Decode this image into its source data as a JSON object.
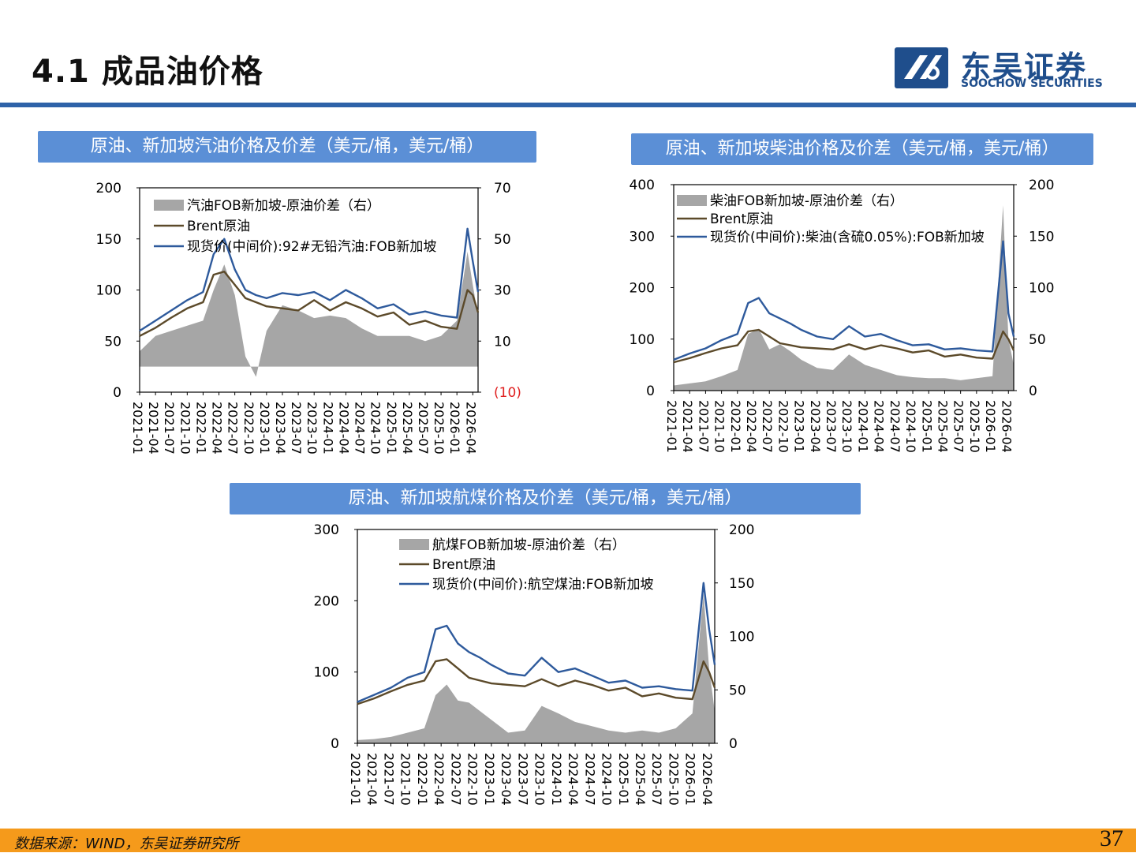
{
  "header": {
    "title": "4.1 成品油价格",
    "logo_cn": "东吴证券",
    "logo_en": "SOOCHOW SECURITIES",
    "accent_color": "#2e62a8"
  },
  "footer": {
    "source": "数据来源：WIND，东吴证券研究所",
    "page_number": "37",
    "bar_color": "#f59a1b"
  },
  "panels": [
    {
      "title": "原油、新加坡汽油价格及价差（美元/桶，美元/桶）"
    },
    {
      "title": "原油、新加坡柴油价格及价差（美元/桶，美元/桶）"
    },
    {
      "title": "原油、新加坡航煤价格及价差（美元/桶，美元/桶）"
    }
  ],
  "chart_data": [
    {
      "type": "line",
      "title": "原油、新加坡汽油价格及价差（美元/桶，美元/桶）",
      "x_ticks": [
        "2021-01",
        "2021-04",
        "2021-07",
        "2021-10",
        "2022-01",
        "2022-04",
        "2022-07",
        "2022-10",
        "2023-01",
        "2023-04",
        "2023-07",
        "2023-10",
        "2024-01",
        "2024-04",
        "2024-07",
        "2024-10",
        "2025-01",
        "2025-04",
        "2025-07",
        "2025-10",
        "2026-01",
        "2026-04"
      ],
      "y_left": {
        "ticks": [
          "0",
          "50",
          "100",
          "150",
          "200"
        ],
        "range": [
          0,
          200
        ]
      },
      "y_right": {
        "ticks": [
          "(10)",
          "10",
          "30",
          "50",
          "70"
        ],
        "range": [
          -10,
          70
        ],
        "negative_color": "#e02020"
      },
      "series": [
        {
          "name": "汽油FOB新加坡-原油价差（右）",
          "type": "area",
          "axis": "right",
          "color": "#a6a6a6",
          "x": [
            "2021-01",
            "2021-04",
            "2021-07",
            "2021-10",
            "2022-01",
            "2022-03",
            "2022-05",
            "2022-07",
            "2022-09",
            "2022-11",
            "2023-01",
            "2023-04",
            "2023-07",
            "2023-10",
            "2024-01",
            "2024-04",
            "2024-07",
            "2024-10",
            "2025-01",
            "2025-04",
            "2025-07",
            "2025-10",
            "2026-01",
            "2026-03",
            "2026-04",
            "2026-05"
          ],
          "values": [
            6,
            12,
            14,
            16,
            18,
            30,
            40,
            28,
            4,
            -4,
            14,
            24,
            22,
            19,
            20,
            19,
            15,
            12,
            12,
            12,
            10,
            12,
            18,
            45,
            32,
            20
          ]
        },
        {
          "name": "Brent原油",
          "type": "line",
          "axis": "left",
          "color": "#5c4a2a",
          "x": [
            "2021-01",
            "2021-04",
            "2021-07",
            "2021-10",
            "2022-01",
            "2022-03",
            "2022-05",
            "2022-07",
            "2022-09",
            "2022-11",
            "2023-01",
            "2023-04",
            "2023-07",
            "2023-10",
            "2024-01",
            "2024-04",
            "2024-07",
            "2024-10",
            "2025-01",
            "2025-04",
            "2025-07",
            "2025-10",
            "2026-01",
            "2026-03",
            "2026-04",
            "2026-05"
          ],
          "values": [
            55,
            63,
            73,
            82,
            88,
            115,
            118,
            105,
            92,
            88,
            84,
            82,
            80,
            90,
            80,
            88,
            82,
            74,
            78,
            66,
            70,
            64,
            62,
            100,
            95,
            78
          ]
        },
        {
          "name": "现货价(中间价):92#无铅汽油:FOB新加坡",
          "type": "line",
          "axis": "left",
          "color": "#2e5a9c",
          "x": [
            "2021-01",
            "2021-04",
            "2021-07",
            "2021-10",
            "2022-01",
            "2022-03",
            "2022-05",
            "2022-07",
            "2022-09",
            "2022-11",
            "2023-01",
            "2023-04",
            "2023-07",
            "2023-10",
            "2024-01",
            "2024-04",
            "2024-07",
            "2024-10",
            "2025-01",
            "2025-04",
            "2025-07",
            "2025-10",
            "2026-01",
            "2026-03",
            "2026-04",
            "2026-05"
          ],
          "values": [
            60,
            70,
            80,
            90,
            98,
            135,
            150,
            120,
            100,
            95,
            92,
            97,
            95,
            98,
            90,
            100,
            92,
            82,
            86,
            76,
            79,
            75,
            73,
            160,
            128,
            98
          ]
        }
      ]
    },
    {
      "type": "line",
      "title": "原油、新加坡柴油价格及价差（美元/桶，美元/桶）",
      "x_ticks": [
        "2021-01",
        "2021-04",
        "2021-07",
        "2021-10",
        "2022-01",
        "2022-04",
        "2022-07",
        "2022-10",
        "2023-01",
        "2023-04",
        "2023-07",
        "2023-10",
        "2024-01",
        "2024-04",
        "2024-07",
        "2024-10",
        "2025-01",
        "2025-04",
        "2025-07",
        "2025-10",
        "2026-01",
        "2026-04"
      ],
      "y_left": {
        "ticks": [
          "0",
          "100",
          "200",
          "300",
          "400"
        ],
        "range": [
          0,
          400
        ]
      },
      "y_right": {
        "ticks": [
          "0",
          "50",
          "100",
          "150",
          "200"
        ],
        "range": [
          0,
          200
        ]
      },
      "series": [
        {
          "name": "柴油FOB新加坡-原油价差（右）",
          "type": "area",
          "axis": "right",
          "color": "#a6a6a6",
          "x": [
            "2021-01",
            "2021-04",
            "2021-07",
            "2021-10",
            "2022-01",
            "2022-03",
            "2022-05",
            "2022-07",
            "2022-09",
            "2022-11",
            "2023-01",
            "2023-04",
            "2023-07",
            "2023-10",
            "2024-01",
            "2024-04",
            "2024-07",
            "2024-10",
            "2025-01",
            "2025-04",
            "2025-07",
            "2025-10",
            "2026-01",
            "2026-03",
            "2026-04",
            "2026-05"
          ],
          "values": [
            5,
            7,
            9,
            14,
            20,
            55,
            60,
            40,
            45,
            38,
            30,
            22,
            20,
            35,
            25,
            20,
            15,
            13,
            12,
            12,
            10,
            12,
            14,
            180,
            50,
            25
          ]
        },
        {
          "name": "Brent原油",
          "type": "line",
          "axis": "left",
          "color": "#5c4a2a",
          "x": [
            "2021-01",
            "2021-04",
            "2021-07",
            "2021-10",
            "2022-01",
            "2022-03",
            "2022-05",
            "2022-07",
            "2022-09",
            "2022-11",
            "2023-01",
            "2023-04",
            "2023-07",
            "2023-10",
            "2024-01",
            "2024-04",
            "2024-07",
            "2024-10",
            "2025-01",
            "2025-04",
            "2025-07",
            "2025-10",
            "2026-01",
            "2026-03",
            "2026-04",
            "2026-05"
          ],
          "values": [
            55,
            63,
            73,
            82,
            88,
            115,
            118,
            105,
            92,
            88,
            84,
            82,
            80,
            90,
            80,
            88,
            82,
            74,
            78,
            66,
            70,
            64,
            62,
            115,
            100,
            78
          ]
        },
        {
          "name": "现货价(中间价):柴油(含硫0.05%):FOB新加坡",
          "type": "line",
          "axis": "left",
          "color": "#2e5a9c",
          "x": [
            "2021-01",
            "2021-04",
            "2021-07",
            "2021-10",
            "2022-01",
            "2022-03",
            "2022-05",
            "2022-07",
            "2022-09",
            "2022-11",
            "2023-01",
            "2023-04",
            "2023-07",
            "2023-10",
            "2024-01",
            "2024-04",
            "2024-07",
            "2024-10",
            "2025-01",
            "2025-04",
            "2025-07",
            "2025-10",
            "2026-01",
            "2026-03",
            "2026-04",
            "2026-05"
          ],
          "values": [
            60,
            72,
            82,
            98,
            110,
            170,
            180,
            150,
            140,
            130,
            118,
            105,
            100,
            125,
            105,
            110,
            98,
            88,
            90,
            80,
            82,
            78,
            76,
            290,
            150,
            105
          ]
        }
      ]
    },
    {
      "type": "line",
      "title": "原油、新加坡航煤价格及价差（美元/桶，美元/桶）",
      "x_ticks": [
        "2021-01",
        "2021-04",
        "2021-07",
        "2021-10",
        "2022-01",
        "2022-04",
        "2022-07",
        "2022-10",
        "2023-01",
        "2023-04",
        "2023-07",
        "2023-10",
        "2024-01",
        "2024-04",
        "2024-07",
        "2024-10",
        "2025-01",
        "2025-04",
        "2025-07",
        "2025-10",
        "2026-01",
        "2026-04"
      ],
      "y_left": {
        "ticks": [
          "0",
          "100",
          "200",
          "300"
        ],
        "range": [
          0,
          300
        ]
      },
      "y_right": {
        "ticks": [
          "0",
          "50",
          "100",
          "150",
          "200"
        ],
        "range": [
          0,
          200
        ]
      },
      "series": [
        {
          "name": "航煤FOB新加坡-原油价差（右）",
          "type": "area",
          "axis": "right",
          "color": "#a6a6a6",
          "x": [
            "2021-01",
            "2021-04",
            "2021-07",
            "2021-10",
            "2022-01",
            "2022-03",
            "2022-05",
            "2022-07",
            "2022-09",
            "2022-11",
            "2023-01",
            "2023-04",
            "2023-07",
            "2023-10",
            "2024-01",
            "2024-04",
            "2024-07",
            "2024-10",
            "2025-01",
            "2025-04",
            "2025-07",
            "2025-10",
            "2026-01",
            "2026-03",
            "2026-04",
            "2026-05"
          ],
          "values": [
            3,
            4,
            6,
            10,
            14,
            45,
            55,
            40,
            38,
            30,
            22,
            10,
            12,
            35,
            28,
            20,
            16,
            12,
            10,
            12,
            10,
            14,
            28,
            140,
            70,
            30
          ]
        },
        {
          "name": "Brent原油",
          "type": "line",
          "axis": "left",
          "color": "#5c4a2a",
          "x": [
            "2021-01",
            "2021-04",
            "2021-07",
            "2021-10",
            "2022-01",
            "2022-03",
            "2022-05",
            "2022-07",
            "2022-09",
            "2022-11",
            "2023-01",
            "2023-04",
            "2023-07",
            "2023-10",
            "2024-01",
            "2024-04",
            "2024-07",
            "2024-10",
            "2025-01",
            "2025-04",
            "2025-07",
            "2025-10",
            "2026-01",
            "2026-03",
            "2026-04",
            "2026-05"
          ],
          "values": [
            55,
            63,
            73,
            82,
            88,
            115,
            118,
            105,
            92,
            88,
            84,
            82,
            80,
            90,
            80,
            88,
            82,
            74,
            78,
            66,
            70,
            64,
            62,
            115,
            100,
            78
          ]
        },
        {
          "name": "现货价(中间价):航空煤油:FOB新加坡",
          "type": "line",
          "axis": "left",
          "color": "#2e5a9c",
          "x": [
            "2021-01",
            "2021-04",
            "2021-07",
            "2021-10",
            "2022-01",
            "2022-03",
            "2022-05",
            "2022-07",
            "2022-09",
            "2022-11",
            "2023-01",
            "2023-04",
            "2023-07",
            "2023-10",
            "2024-01",
            "2024-04",
            "2024-07",
            "2024-10",
            "2025-01",
            "2025-04",
            "2025-07",
            "2025-10",
            "2026-01",
            "2026-03",
            "2026-04",
            "2026-05"
          ],
          "values": [
            58,
            68,
            78,
            92,
            100,
            160,
            165,
            140,
            128,
            120,
            110,
            98,
            95,
            120,
            100,
            105,
            95,
            85,
            88,
            78,
            80,
            76,
            74,
            225,
            160,
            110
          ]
        }
      ]
    }
  ]
}
